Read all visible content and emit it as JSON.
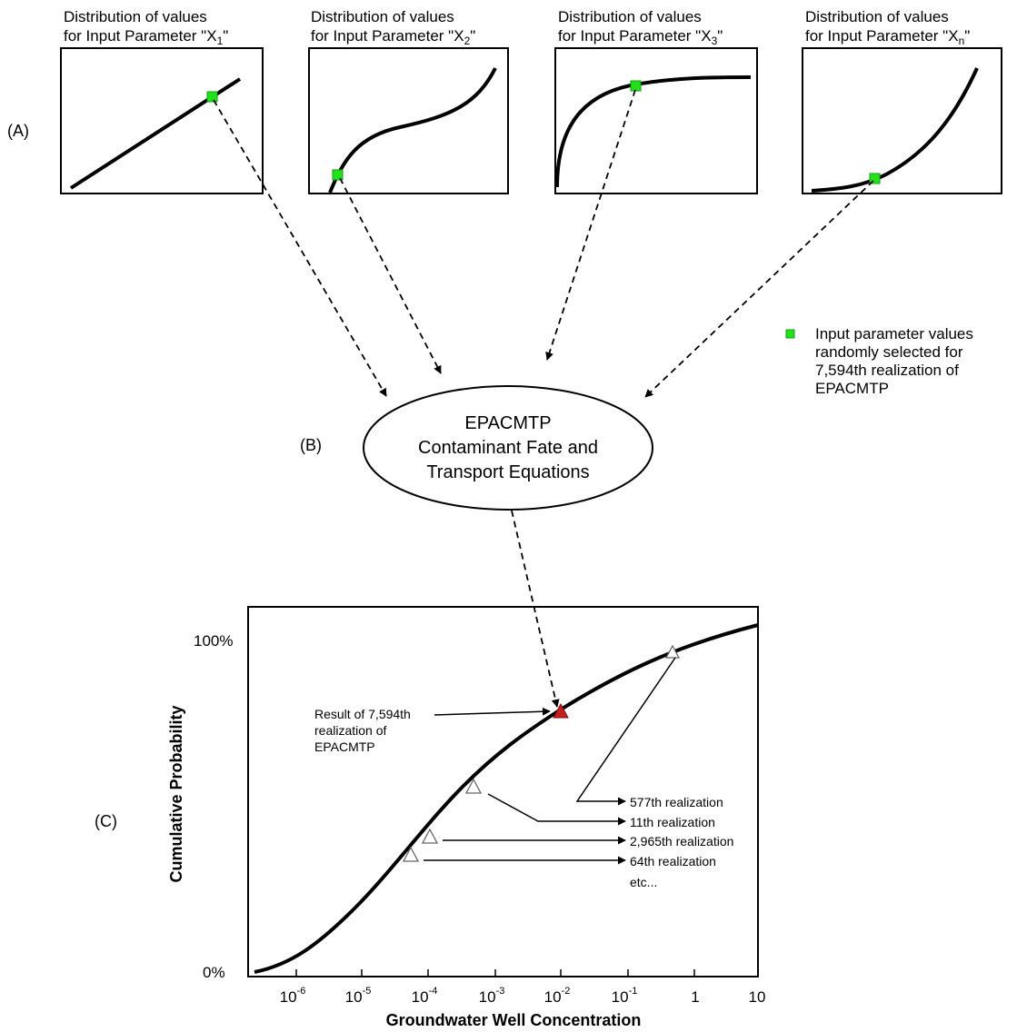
{
  "section_labels": {
    "a": "(A)",
    "b": "(B)",
    "c": "(C)"
  },
  "panels": [
    {
      "line1": "Distribution of values",
      "line2_prefix": "for Input Parameter \"X",
      "sub": "1",
      "line2_suffix": "\""
    },
    {
      "line1": "Distribution of values",
      "line2_prefix": "for Input Parameter \"X",
      "sub": "2",
      "line2_suffix": "\""
    },
    {
      "line1": "Distribution of values",
      "line2_prefix": "for Input Parameter \"X",
      "sub": "3",
      "line2_suffix": "\""
    },
    {
      "line1": "Distribution of values",
      "line2_prefix": "for Input Parameter \"X",
      "sub": "n",
      "line2_suffix": "\""
    }
  ],
  "legend": {
    "lines": [
      "Input parameter values",
      "randomly selected for",
      "7,594th realization of",
      "EPACMTP"
    ],
    "marker_color": "#22e01a"
  },
  "model": {
    "lines": [
      "EPACMTP",
      "Contaminant Fate and",
      "Transport Equations"
    ]
  },
  "chart": {
    "y_axis_title": "Cumulative Probability",
    "x_axis_title": "Groundwater Well Concentration",
    "y_top_label": "100%",
    "y_bottom_label": "0%",
    "x_ticks": [
      {
        "base": "10",
        "exp": "-6"
      },
      {
        "base": "10",
        "exp": "-5"
      },
      {
        "base": "10",
        "exp": "-4"
      },
      {
        "base": "10",
        "exp": "-3"
      },
      {
        "base": "10",
        "exp": "-2"
      },
      {
        "base": "10",
        "exp": "-1"
      },
      {
        "base": "1",
        "exp": ""
      },
      {
        "base": "10",
        "exp": ""
      }
    ],
    "result_label": [
      "Result of 7,594th",
      "realization of",
      "EPACMTP"
    ],
    "result_color": "#c21f1f",
    "realizations": [
      "577th realization",
      "11th realization",
      "2,965th realization",
      "64th realization",
      "etc..."
    ]
  }
}
